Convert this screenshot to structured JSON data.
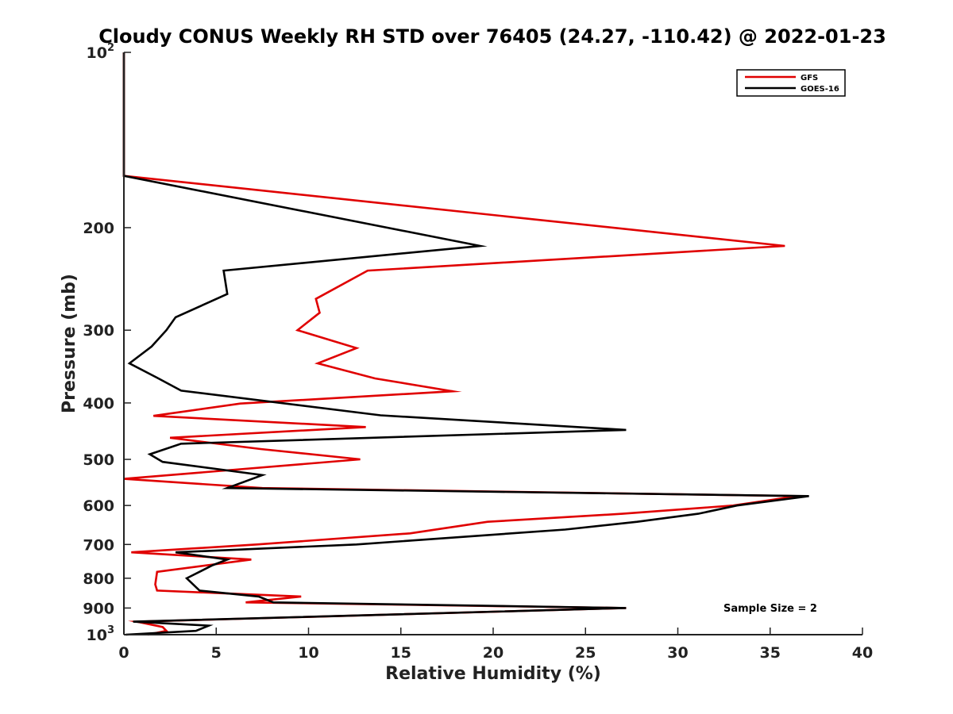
{
  "chart_data": {
    "type": "line",
    "title": "Cloudy CONUS Weekly RH STD over 76405 (24.27, -110.42) @ 2022-01-23",
    "xlabel": "Relative Humidity (%)",
    "ylabel": "Pressure (mb)",
    "xlim": [
      0,
      40
    ],
    "ylim": [
      100,
      1000
    ],
    "yscale": "log",
    "y_reversed": true,
    "grid": false,
    "legend_position": "top-right",
    "x_ticks": [
      {
        "value": 0,
        "label": "0"
      },
      {
        "value": 5,
        "label": "5"
      },
      {
        "value": 10,
        "label": "10"
      },
      {
        "value": 15,
        "label": "15"
      },
      {
        "value": 20,
        "label": "20"
      },
      {
        "value": 25,
        "label": "25"
      },
      {
        "value": 30,
        "label": "30"
      },
      {
        "value": 35,
        "label": "35"
      },
      {
        "value": 40,
        "label": "40"
      }
    ],
    "y_ticks": [
      {
        "value": 100,
        "label": "10",
        "sup": "2"
      },
      {
        "value": 200,
        "label": "200"
      },
      {
        "value": 300,
        "label": "300"
      },
      {
        "value": 400,
        "label": "400"
      },
      {
        "value": 500,
        "label": "500"
      },
      {
        "value": 600,
        "label": "600"
      },
      {
        "value": 700,
        "label": "700"
      },
      {
        "value": 800,
        "label": "800"
      },
      {
        "value": 900,
        "label": "900"
      },
      {
        "value": 1000,
        "label": "10",
        "sup": "3"
      }
    ],
    "series": [
      {
        "name": "GFS",
        "color": "#e00000",
        "x": [
          0,
          0,
          0,
          35.8,
          13.2,
          10.4,
          10.6,
          9.4,
          12.6,
          10.5,
          13.6,
          17.8,
          6.3,
          1.6,
          13.1,
          2.5,
          7.4,
          12.8,
          0,
          7.5,
          36.5,
          33,
          27,
          19.7,
          15.5,
          7.2,
          0.4,
          6.9,
          1.8,
          1.7,
          1.8,
          9.6,
          6.6,
          27.2,
          0.7,
          2.1,
          2.3,
          1.3
        ],
        "y": [
          100,
          130,
          163,
          215,
          237,
          265,
          280,
          300,
          322,
          342,
          363,
          382,
          401,
          421,
          440,
          459,
          480,
          500,
          540,
          560,
          578,
          600,
          620,
          640,
          670,
          700,
          722,
          743,
          780,
          820,
          840,
          860,
          880,
          900,
          950,
          970,
          985,
          1000
        ]
      },
      {
        "name": "GOES-16",
        "color": "#000000",
        "x": [
          0,
          0,
          0,
          19.3,
          5.4,
          5.6,
          2.8,
          2.3,
          1.5,
          0.3,
          1.8,
          3.1,
          13.9,
          27.2,
          3.1,
          1.4,
          2.1,
          7.5,
          5.6,
          37.1,
          33.2,
          31.1,
          27.8,
          23.9,
          12.6,
          2.8,
          5.6,
          4.8,
          3.4,
          4.1,
          7.3,
          8.1,
          27.2,
          0.5,
          4.6,
          3.9,
          0.1
        ],
        "y": [
          100,
          130,
          163,
          215,
          237,
          260,
          285,
          300,
          320,
          342,
          362,
          381,
          420,
          445,
          470,
          490,
          505,
          532,
          560,
          578,
          600,
          620,
          640,
          660,
          700,
          722,
          743,
          760,
          800,
          840,
          860,
          880,
          900,
          950,
          965,
          985,
          1000
        ]
      }
    ],
    "legend": [
      {
        "name": "GFS",
        "color": "#e00000"
      },
      {
        "name": "GOES-16",
        "color": "#000000"
      }
    ],
    "annotation": "Sample Size = 2"
  }
}
